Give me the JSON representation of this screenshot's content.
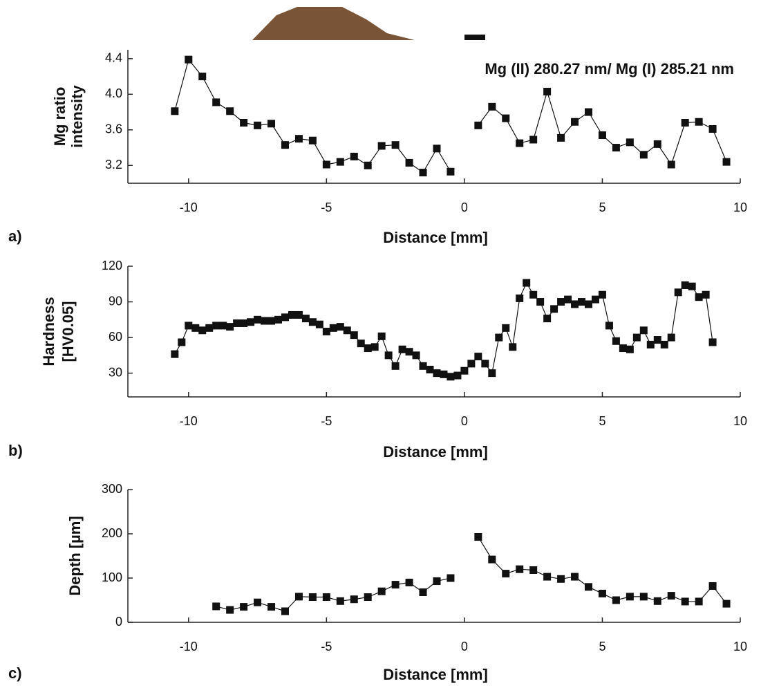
{
  "chart_data": [
    {
      "type": "line",
      "panel": "a)",
      "annotation": "Mg (II) 280.27 nm/ Mg (I) 285.21 nm",
      "xlabel": "Distance [mm]",
      "ylabel": [
        "Mg ratio",
        "intensity"
      ],
      "xlim": [
        -12.2,
        10
      ],
      "xticks": [
        -10,
        -5,
        0,
        5,
        10
      ],
      "ylim": [
        3.0,
        4.5
      ],
      "yticks": [
        3.2,
        3.6,
        {
          "value": 4,
          "label": "4.0"
        },
        4.4
      ],
      "x": [
        -10.5,
        -10,
        -9.5,
        -9,
        -8.5,
        -8,
        -7.5,
        -7,
        -6.5,
        -6,
        -5.5,
        -5,
        -4.5,
        -4,
        -3.5,
        -3,
        -2.5,
        -2,
        -1.5,
        -1,
        -0.5,
        0,
        0.5,
        1,
        1.5,
        2,
        2.5,
        3,
        3.5,
        4,
        4.5,
        5,
        5.5,
        6,
        6.5,
        7,
        7.5,
        8,
        8.5,
        9,
        9.5
      ],
      "series": [
        {
          "color": "#111111",
          "values": [
            3.81,
            4.39,
            4.2,
            3.91,
            3.81,
            3.68,
            3.65,
            3.67,
            3.43,
            3.5,
            3.48,
            3.21,
            3.24,
            3.3,
            3.2,
            3.42,
            3.43,
            3.23,
            3.12,
            3.39,
            3.13,
            null,
            3.65,
            3.86,
            3.73,
            3.45,
            3.49,
            4.03,
            3.51,
            3.69,
            3.8,
            3.54,
            3.4,
            3.46,
            3.32,
            3.44,
            3.21,
            3.68,
            3.69,
            3.61,
            3.24
          ]
        }
      ]
    },
    {
      "type": "line",
      "panel": "b)",
      "xlabel": "Distance [mm]",
      "ylabel": [
        "Hardness",
        "[HV0.05]"
      ],
      "xlim": [
        -12.2,
        10
      ],
      "xticks": [
        -10,
        -5,
        0,
        5,
        10
      ],
      "ylim": [
        10,
        120
      ],
      "yticks": [
        30,
        60,
        90,
        120
      ],
      "x": [
        -10.5,
        -10.25,
        -10,
        -9.75,
        -9.5,
        -9.25,
        -9,
        -8.75,
        -8.5,
        -8.25,
        -8,
        -7.75,
        -7.5,
        -7.25,
        -7,
        -6.75,
        -6.5,
        -6.25,
        -6,
        -5.75,
        -5.5,
        -5.25,
        -5,
        -4.75,
        -4.5,
        -4.25,
        -4,
        -3.75,
        -3.5,
        -3.25,
        -3,
        -2.75,
        -2.5,
        -2.25,
        -2,
        -1.75,
        -1.5,
        -1.25,
        -1,
        -0.75,
        -0.5,
        -0.25,
        0,
        0.25,
        0.5,
        0.75,
        1,
        1.25,
        1.5,
        1.75,
        2,
        2.25,
        2.5,
        2.75,
        3,
        3.25,
        3.5,
        3.75,
        4,
        4.25,
        4.5,
        4.75,
        5,
        5.25,
        5.5,
        5.75,
        6,
        6.25,
        6.5,
        6.75,
        7,
        7.25,
        7.5,
        7.75,
        8,
        8.25,
        8.5,
        8.75,
        9
      ],
      "series": [
        {
          "color": "#111111",
          "values": [
            46,
            56,
            70,
            68,
            66,
            68,
            70,
            70,
            69,
            72,
            72,
            73,
            75,
            74,
            74,
            75,
            77,
            79,
            79,
            76,
            73,
            71,
            65,
            68,
            69,
            66,
            62,
            55,
            51,
            52,
            61,
            45,
            36,
            50,
            48,
            45,
            36,
            33,
            30,
            29,
            27,
            28,
            32,
            38,
            44,
            38,
            30,
            60,
            68,
            52,
            93,
            106,
            96,
            90,
            76,
            84,
            90,
            92,
            88,
            90,
            88,
            92,
            96,
            70,
            57,
            51,
            50,
            60,
            66,
            54,
            58,
            54,
            60,
            98,
            104,
            103,
            94,
            96,
            56
          ]
        }
      ]
    },
    {
      "type": "line",
      "panel": "c)",
      "xlabel": "Distance [mm]",
      "ylabel": [
        "Depth [µm]"
      ],
      "xlim": [
        -12.2,
        10
      ],
      "xticks": [
        -10,
        -5,
        0,
        5,
        10
      ],
      "ylim": [
        0,
        300
      ],
      "yticks": [
        0,
        100,
        200,
        300
      ],
      "x": [
        -9,
        -8.5,
        -8,
        -7.5,
        -7,
        -6.5,
        -6,
        -5.5,
        -5,
        -4.5,
        -4,
        -3.5,
        -3,
        -2.5,
        -2,
        -1.5,
        -1,
        -0.5,
        0,
        0.5,
        1,
        1.5,
        2,
        2.5,
        3,
        3.5,
        4,
        4.5,
        5,
        5.5,
        6,
        6.5,
        7,
        7.5,
        8,
        8.5,
        9,
        9.5
      ],
      "series": [
        {
          "color": "#111111",
          "values": [
            36,
            28,
            35,
            45,
            35,
            25,
            58,
            57,
            57,
            48,
            52,
            57,
            70,
            85,
            90,
            68,
            93,
            100,
            null,
            193,
            142,
            110,
            120,
            118,
            103,
            98,
            103,
            80,
            65,
            50,
            58,
            58,
            48,
            60,
            47,
            47,
            82,
            42
          ]
        }
      ]
    }
  ]
}
